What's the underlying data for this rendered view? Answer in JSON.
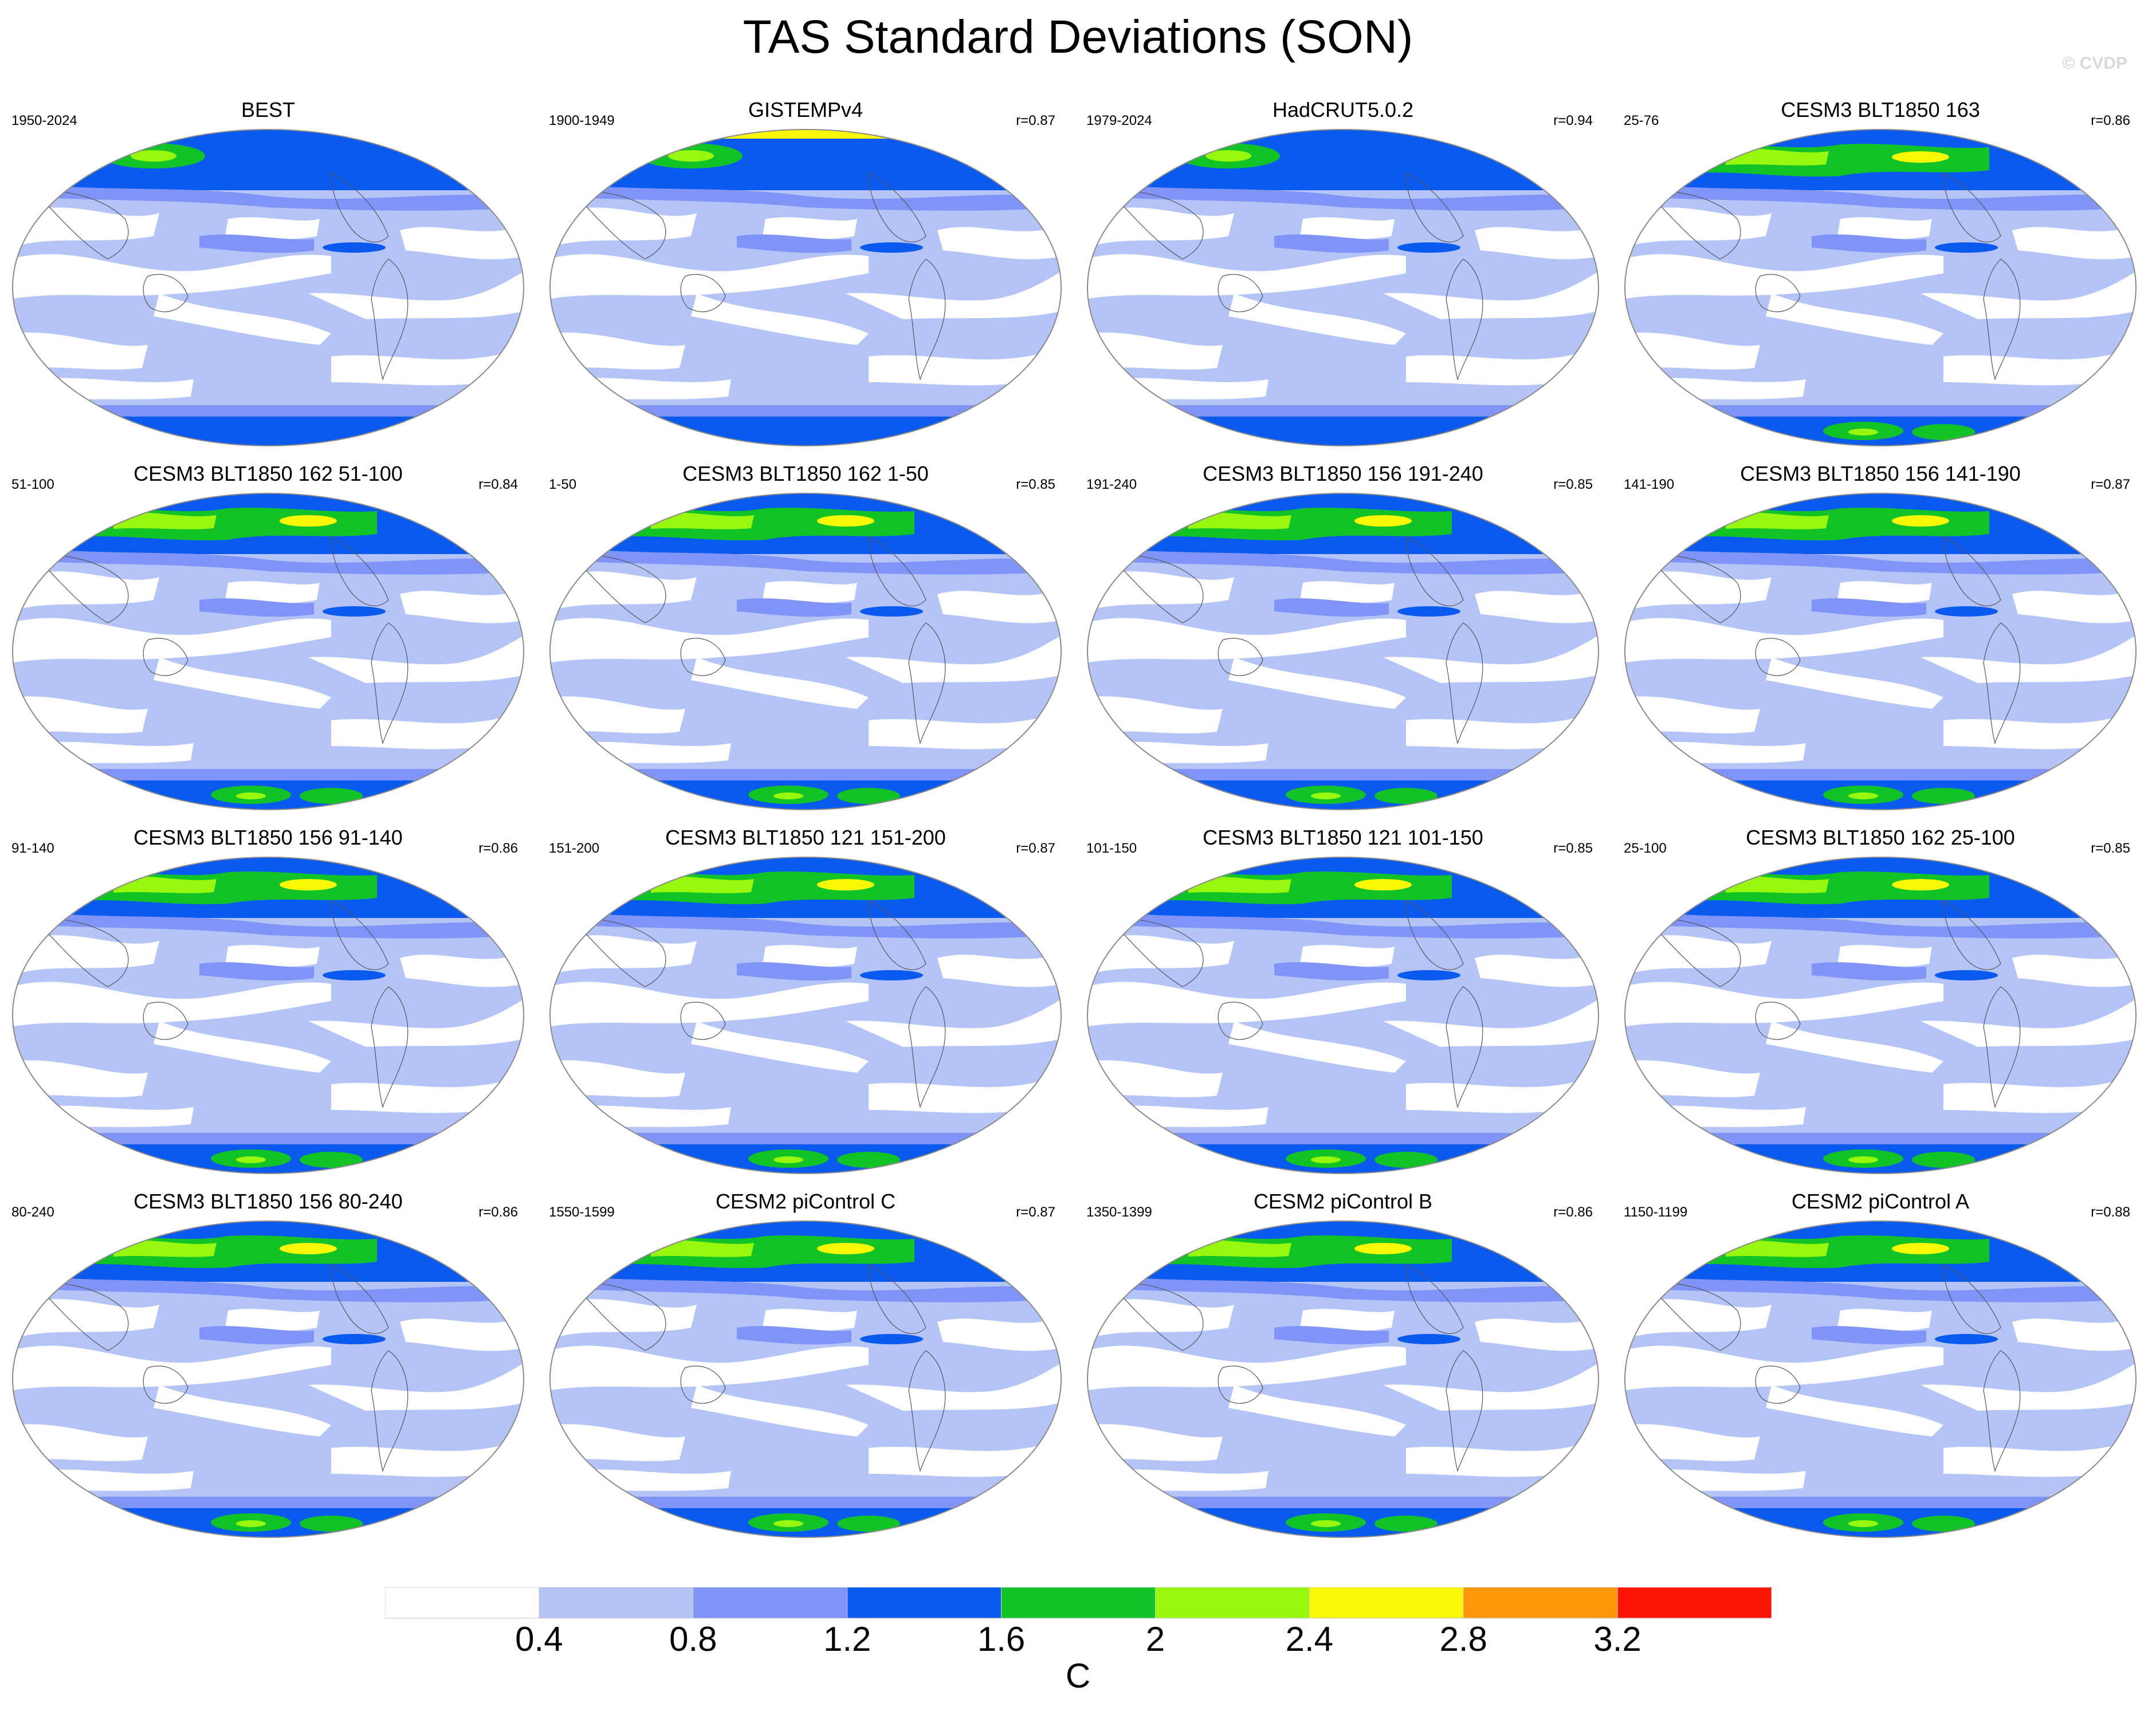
{
  "title": "TAS Standard Deviations (SON)",
  "watermark": "© CVDP",
  "panels": [
    {
      "name": "BEST",
      "years": "1950-2024",
      "r": ""
    },
    {
      "name": "GISTEMPv4",
      "years": "1900-1949",
      "r": "r=0.87"
    },
    {
      "name": "HadCRUT5.0.2",
      "years": "1979-2024",
      "r": "r=0.94"
    },
    {
      "name": "CESM3 BLT1850 163",
      "years": "25-76",
      "r": "r=0.86"
    },
    {
      "name": "CESM3 BLT1850 162 51-100",
      "years": "51-100",
      "r": "r=0.84"
    },
    {
      "name": "CESM3 BLT1850 162 1-50",
      "years": "1-50",
      "r": "r=0.85"
    },
    {
      "name": "CESM3 BLT1850 156 191-240",
      "years": "191-240",
      "r": "r=0.85"
    },
    {
      "name": "CESM3 BLT1850 156 141-190",
      "years": "141-190",
      "r": "r=0.87"
    },
    {
      "name": "CESM3 BLT1850 156 91-140",
      "years": "91-140",
      "r": "r=0.86"
    },
    {
      "name": "CESM3 BLT1850 121 151-200",
      "years": "151-200",
      "r": "r=0.87"
    },
    {
      "name": "CESM3 BLT1850 121 101-150",
      "years": "101-150",
      "r": "r=0.85"
    },
    {
      "name": "CESM3 BLT1850 162 25-100",
      "years": "25-100",
      "r": "r=0.85"
    },
    {
      "name": "CESM3 BLT1850 156 80-240",
      "years": "80-240",
      "r": "r=0.86"
    },
    {
      "name": "CESM2 piControl C",
      "years": "1550-1599",
      "r": "r=0.87"
    },
    {
      "name": "CESM2 piControl B",
      "years": "1350-1399",
      "r": "r=0.86"
    },
    {
      "name": "CESM2 piControl A",
      "years": "1150-1199",
      "r": "r=0.88"
    }
  ],
  "colorbar": {
    "colors": [
      "#ffffff",
      "#b4c4f6",
      "#8094f8",
      "#0a5af0",
      "#11c326",
      "#97f80e",
      "#fbf806",
      "#fd9705",
      "#fc1404"
    ],
    "tick_labels": [
      "0.4",
      "0.8",
      "1.2",
      "1.6",
      "2",
      "2.4",
      "2.8",
      "3.2"
    ],
    "units": "C"
  }
}
